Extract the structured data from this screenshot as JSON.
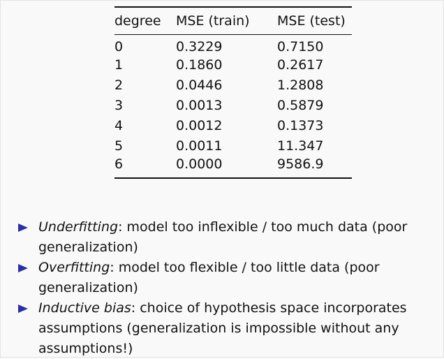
{
  "table": {
    "headers": [
      "degree",
      "MSE (train)",
      "MSE (test)"
    ],
    "rows": [
      {
        "degree": "0",
        "train": "0.3229",
        "test": "0.7150"
      },
      {
        "degree": "1",
        "train": "0.1860",
        "test": "0.2617"
      },
      {
        "degree": "2",
        "train": "0.0446",
        "test": "1.2808"
      },
      {
        "degree": "3",
        "train": "0.0013",
        "test": "0.5879"
      },
      {
        "degree": "4",
        "train": "0.0012",
        "test": "0.1373"
      },
      {
        "degree": "5",
        "train": "0.0011",
        "test": "11.347"
      },
      {
        "degree": "6",
        "train": "0.0000",
        "test": "9586.9"
      }
    ]
  },
  "bullets": [
    {
      "term": "Underfitting",
      "text": ": model too inflexible / too much data (poor generalization)"
    },
    {
      "term": "Overfitting",
      "text": ": model too flexible / too little data (poor generalization)"
    },
    {
      "term": "Inductive bias",
      "text": ": choice of hypothesis space incorporates assumptions (generalization is impossible without any assumptions!)"
    }
  ],
  "colors": {
    "bullet_arrow": "#2b2fa6",
    "text": "#111111",
    "background": "#f9f9f9"
  },
  "icons": {
    "bullet": "triangle-right-icon"
  }
}
